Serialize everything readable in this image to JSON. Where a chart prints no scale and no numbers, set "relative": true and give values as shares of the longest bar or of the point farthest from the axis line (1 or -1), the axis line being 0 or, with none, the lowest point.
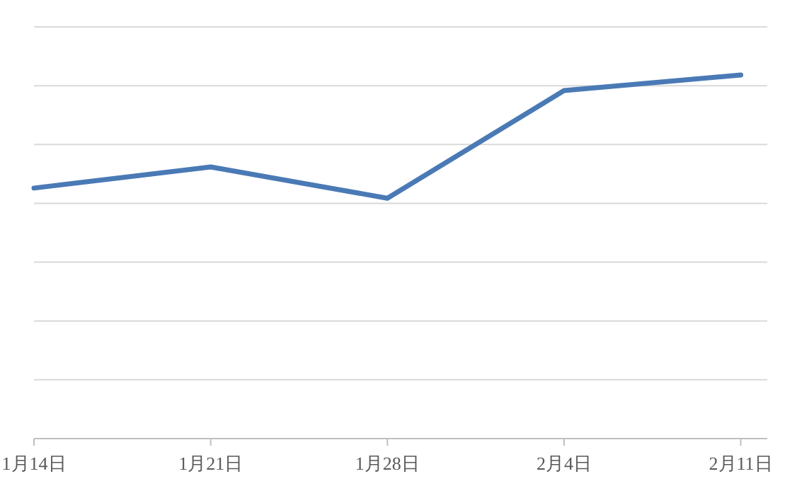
{
  "chart_data": {
    "type": "line",
    "relative": true,
    "grid": "y",
    "categories": [
      "1月14日",
      "1月21日",
      "1月28日",
      "2月4日",
      "2月11日"
    ],
    "series": [
      {
        "color": "#4a7ab5",
        "values": [
          0.689,
          0.747,
          0.661,
          0.957,
          1
        ]
      }
    ]
  }
}
